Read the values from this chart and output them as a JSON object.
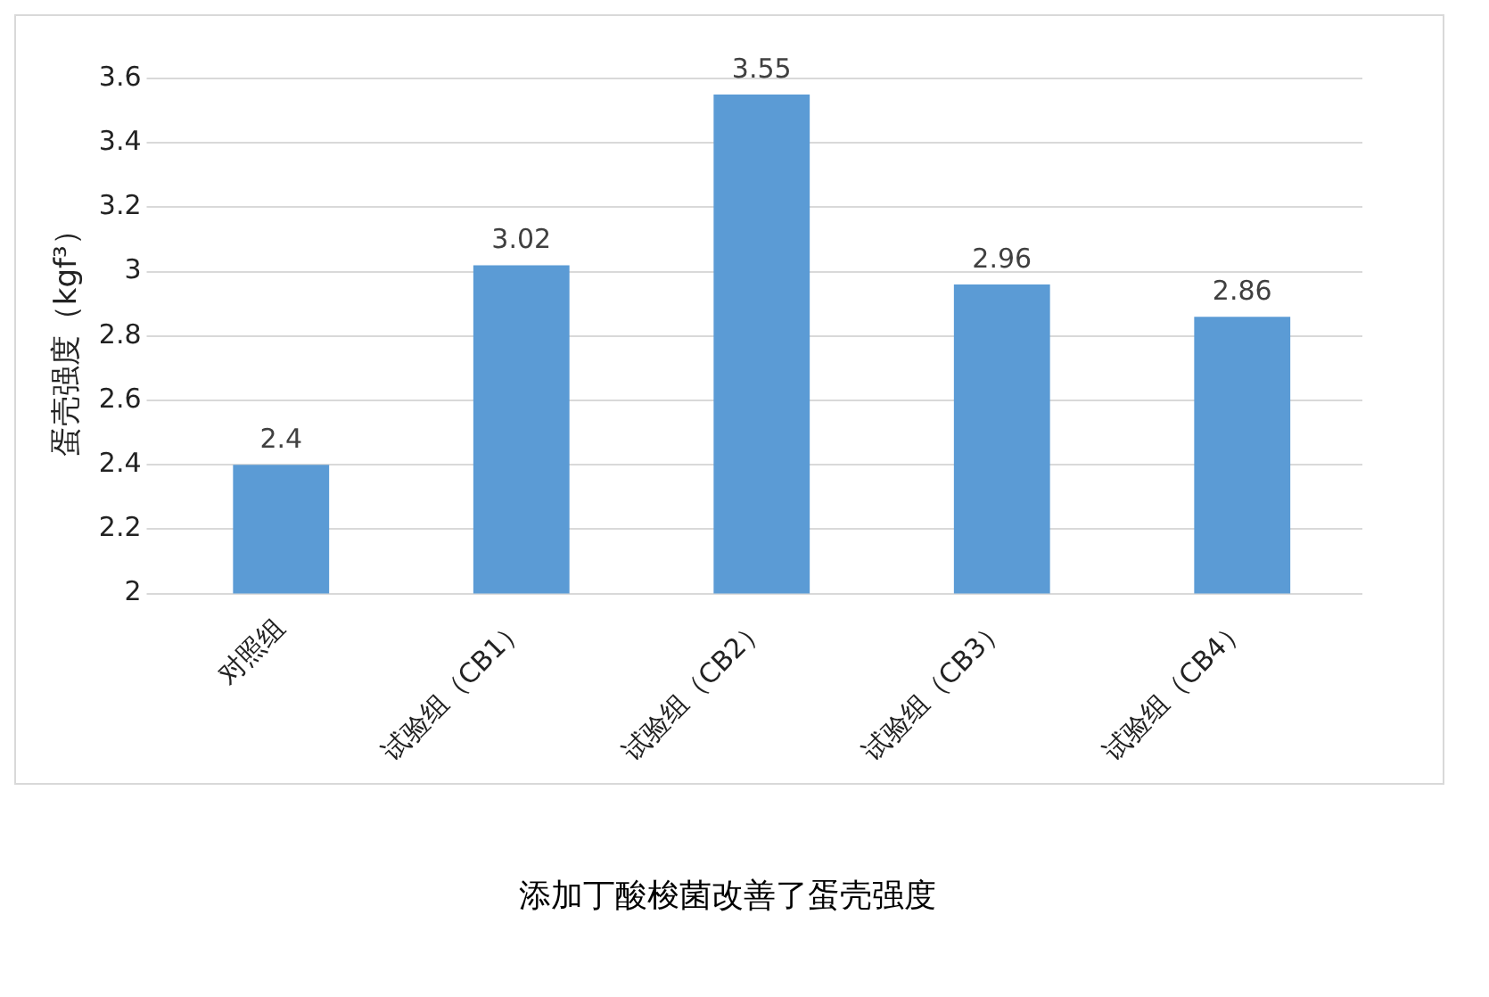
{
  "chart_data": {
    "type": "bar",
    "title": "添加丁酸梭菌改善了蛋壳强度",
    "ylabel": "蛋壳强度（kgf³）",
    "categories": [
      "对照组",
      "试验组（CB1）",
      "试验组（CB2）",
      "试验组（CB3）",
      "试验组（CB4）"
    ],
    "values": [
      2.4,
      3.02,
      3.55,
      2.96,
      2.86
    ],
    "color": "#5b9bd5",
    "ylim": [
      2,
      3.6
    ],
    "yticks": [
      2,
      2.2,
      2.4,
      2.6,
      2.8,
      3,
      3.2,
      3.4,
      3.6
    ],
    "grid": "y",
    "data_labels": true,
    "legend": false
  }
}
